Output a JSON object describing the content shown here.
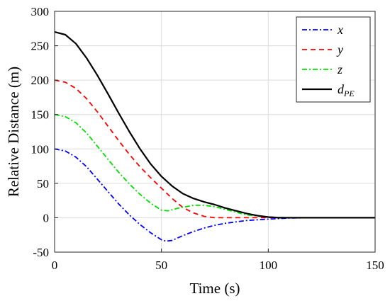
{
  "chart_data": {
    "type": "line",
    "xlabel": "Time (s)",
    "ylabel": "Relative Distance (m)",
    "xlim": [
      0,
      150
    ],
    "ylim": [
      -50,
      300
    ],
    "xticks": [
      0,
      50,
      100,
      150
    ],
    "yticks": [
      -50,
      0,
      50,
      100,
      150,
      200,
      250,
      300
    ],
    "xtick_labels": [
      "0",
      "50",
      "100",
      "150"
    ],
    "ytick_labels": [
      "-50",
      "0",
      "50",
      "100",
      "150",
      "200",
      "250",
      "300"
    ],
    "grid": true,
    "legend_position": "top-right",
    "series": [
      {
        "key": "x",
        "name_main": "x",
        "name_sub": "",
        "color": "#0000ff",
        "dash": "7,3,2,3",
        "points": [
          [
            0,
            100
          ],
          [
            5,
            97
          ],
          [
            10,
            88
          ],
          [
            15,
            74
          ],
          [
            20,
            56
          ],
          [
            25,
            38
          ],
          [
            30,
            20
          ],
          [
            35,
            4
          ],
          [
            40,
            -10
          ],
          [
            45,
            -22
          ],
          [
            50,
            -32
          ],
          [
            52,
            -34
          ],
          [
            55,
            -33
          ],
          [
            60,
            -26
          ],
          [
            65,
            -20
          ],
          [
            70,
            -15
          ],
          [
            75,
            -11
          ],
          [
            80,
            -8
          ],
          [
            90,
            -4
          ],
          [
            100,
            -2
          ],
          [
            110,
            -0.5
          ],
          [
            120,
            0
          ],
          [
            150,
            0
          ]
        ]
      },
      {
        "key": "y",
        "name_main": "y",
        "name_sub": "",
        "color": "#ff0000",
        "dash": "7,5",
        "points": [
          [
            0,
            200
          ],
          [
            5,
            197
          ],
          [
            10,
            188
          ],
          [
            15,
            173
          ],
          [
            20,
            154
          ],
          [
            25,
            133
          ],
          [
            30,
            112
          ],
          [
            35,
            92
          ],
          [
            40,
            74
          ],
          [
            45,
            58
          ],
          [
            50,
            43
          ],
          [
            55,
            28
          ],
          [
            60,
            15
          ],
          [
            65,
            7
          ],
          [
            70,
            2
          ],
          [
            75,
            0
          ],
          [
            80,
            0
          ],
          [
            90,
            0
          ],
          [
            100,
            0
          ],
          [
            150,
            0
          ]
        ]
      },
      {
        "key": "z",
        "name_main": "z",
        "name_sub": "",
        "color": "#00e000",
        "dash": "7,3,2,3",
        "points": [
          [
            0,
            150
          ],
          [
            5,
            147
          ],
          [
            10,
            138
          ],
          [
            15,
            123
          ],
          [
            20,
            104
          ],
          [
            25,
            85
          ],
          [
            30,
            66
          ],
          [
            35,
            49
          ],
          [
            40,
            34
          ],
          [
            45,
            21
          ],
          [
            50,
            11
          ],
          [
            53,
            10
          ],
          [
            58,
            14
          ],
          [
            65,
            18
          ],
          [
            70,
            18
          ],
          [
            75,
            16
          ],
          [
            80,
            12
          ],
          [
            85,
            8
          ],
          [
            90,
            4
          ],
          [
            100,
            1
          ],
          [
            110,
            0
          ],
          [
            150,
            0
          ]
        ]
      },
      {
        "key": "dpe",
        "name_main": "d",
        "name_sub": "PE",
        "color": "#000000",
        "dash": "",
        "points": [
          [
            0,
            270
          ],
          [
            5,
            266
          ],
          [
            10,
            253
          ],
          [
            15,
            232
          ],
          [
            20,
            207
          ],
          [
            25,
            180
          ],
          [
            30,
            152
          ],
          [
            35,
            125
          ],
          [
            40,
            100
          ],
          [
            45,
            78
          ],
          [
            50,
            60
          ],
          [
            55,
            46
          ],
          [
            60,
            35
          ],
          [
            65,
            28
          ],
          [
            70,
            23
          ],
          [
            75,
            19
          ],
          [
            80,
            14
          ],
          [
            85,
            10
          ],
          [
            90,
            6
          ],
          [
            95,
            3
          ],
          [
            100,
            1
          ],
          [
            105,
            0
          ],
          [
            150,
            0
          ]
        ]
      }
    ]
  }
}
